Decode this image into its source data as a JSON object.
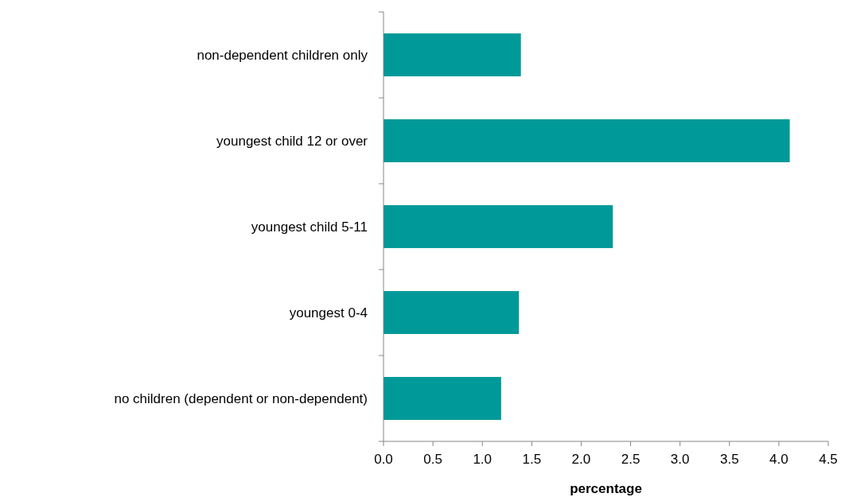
{
  "chart_data": {
    "type": "bar",
    "orientation": "horizontal",
    "xlabel": "percentage",
    "categories": [
      "non-dependent children only",
      "youngest child 12 or over",
      "youngest child 5-11",
      "youngest 0-4",
      "no children (dependent or non-dependent)"
    ],
    "values": [
      1.39,
      4.11,
      2.32,
      1.37,
      1.19
    ],
    "color": "#009999",
    "xlim": [
      0,
      4.5
    ],
    "xticks": [
      {
        "value": 0,
        "label": "0.0"
      },
      {
        "value": 0.5,
        "label": "0.5"
      },
      {
        "value": 1,
        "label": "1.0"
      },
      {
        "value": 1.5,
        "label": "1.5"
      },
      {
        "value": 2,
        "label": "2.0"
      },
      {
        "value": 2.5,
        "label": "2.5"
      },
      {
        "value": 3,
        "label": "3.0"
      },
      {
        "value": 3.5,
        "label": "3.5"
      },
      {
        "value": 4,
        "label": "4.0"
      },
      {
        "value": 4.5,
        "label": "4.5"
      }
    ],
    "grid": false
  }
}
